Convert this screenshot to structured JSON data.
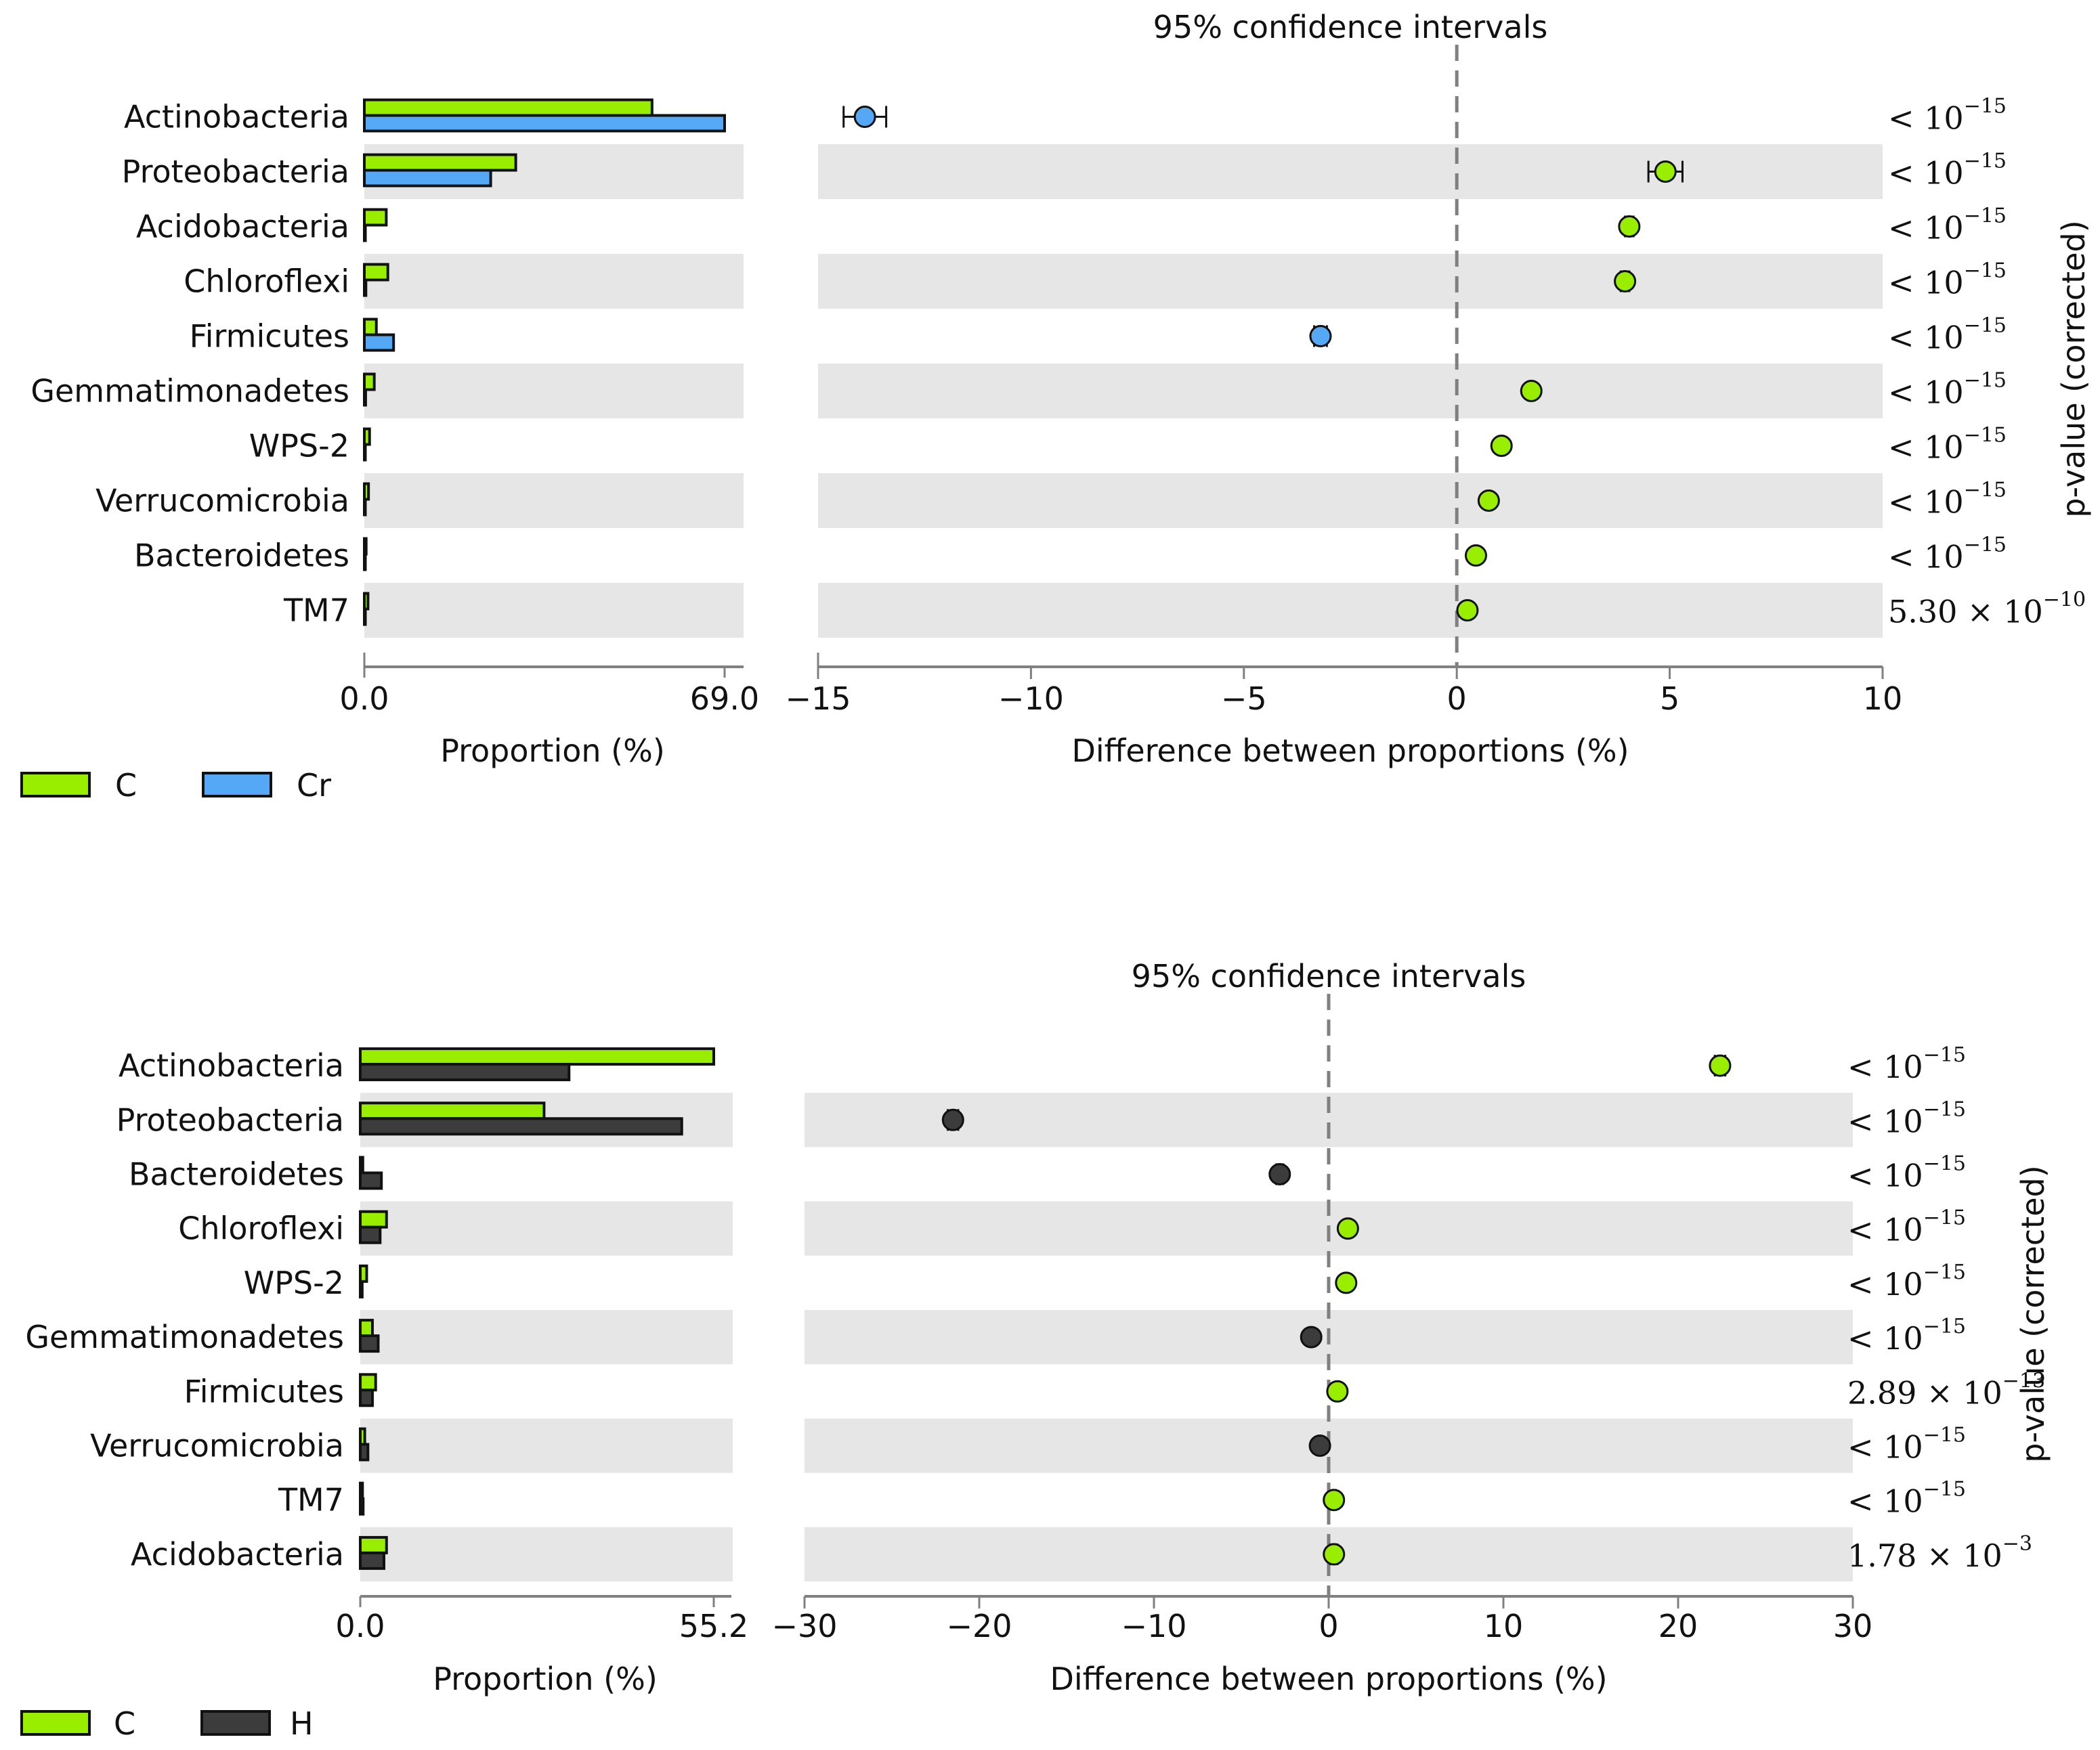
{
  "colors": {
    "C": "#99ee00",
    "Cr": "#55a8f5",
    "H": "#3c3c3c",
    "band": "#e6e6e6",
    "axis": "#808080"
  },
  "chart_data": [
    {
      "type": "bar",
      "subtype": "extended-error-bar",
      "title": "95% confidence intervals",
      "categories": [
        "Actinobacteria",
        "Proteobacteria",
        "Acidobacteria",
        "Chloroflexi",
        "Firmicutes",
        "Gemmatimonadetes",
        "WPS-2",
        "Verrucomicrobia",
        "Bacteroidetes",
        "TM7"
      ],
      "proportion": {
        "xlabel": "Proportion (%)",
        "xlim": [
          0.0,
          69.0
        ],
        "ticks": [
          "0.0",
          "69.0"
        ],
        "series": [
          {
            "name": "C",
            "color": "#99ee00",
            "values": [
              55.1,
              29.0,
              4.2,
              4.5,
              2.3,
              1.9,
              1.0,
              0.8,
              0.35,
              0.7
            ]
          },
          {
            "name": "Cr",
            "color": "#55a8f5",
            "values": [
              69.0,
              24.2,
              0.2,
              0.3,
              5.6,
              0.25,
              0.1,
              0.15,
              0.05,
              0.2
            ]
          }
        ]
      },
      "difference": {
        "xlabel": "Difference between proportions (%)",
        "xlim": [
          -15,
          10
        ],
        "ticks": [
          "−15",
          "−10",
          "−5",
          "0",
          "5",
          "10"
        ],
        "tick_values": [
          -15,
          -10,
          -5,
          0,
          5,
          10
        ],
        "values": [
          -13.9,
          4.9,
          4.05,
          3.95,
          -3.2,
          1.75,
          1.05,
          0.75,
          0.45,
          0.25
        ],
        "ci_low": [
          -14.4,
          4.5,
          3.95,
          3.85,
          -3.35,
          1.7,
          1.0,
          0.7,
          0.4,
          0.2
        ],
        "ci_high": [
          -13.4,
          5.3,
          4.15,
          4.05,
          -3.05,
          1.8,
          1.1,
          0.8,
          0.5,
          0.3
        ],
        "colors": [
          "#55a8f5",
          "#99ee00",
          "#99ee00",
          "#99ee00",
          "#55a8f5",
          "#99ee00",
          "#99ee00",
          "#99ee00",
          "#99ee00",
          "#99ee00"
        ]
      },
      "pvalues": [
        {
          "text": "< 10",
          "exp": "−15"
        },
        {
          "text": "< 10",
          "exp": "−15"
        },
        {
          "text": "< 10",
          "exp": "−15"
        },
        {
          "text": "< 10",
          "exp": "−15"
        },
        {
          "text": "< 10",
          "exp": "−15"
        },
        {
          "text": "< 10",
          "exp": "−15"
        },
        {
          "text": "< 10",
          "exp": "−15"
        },
        {
          "text": "< 10",
          "exp": "−15"
        },
        {
          "text": "< 10",
          "exp": "−15"
        },
        {
          "text": "5.30 × 10",
          "exp": "−10"
        }
      ],
      "pvalue_label": "p-value (corrected)",
      "legend": [
        {
          "name": "C",
          "color": "#99ee00"
        },
        {
          "name": "Cr",
          "color": "#55a8f5"
        }
      ]
    },
    {
      "type": "bar",
      "subtype": "extended-error-bar",
      "title": "95% confidence intervals",
      "categories": [
        "Actinobacteria",
        "Proteobacteria",
        "Bacteroidetes",
        "Chloroflexi",
        "WPS-2",
        "Gemmatimonadetes",
        "Firmicutes",
        "Verrucomicrobia",
        "TM7",
        "Acidobacteria"
      ],
      "proportion": {
        "xlabel": "Proportion (%)",
        "xlim": [
          0.0,
          55.2
        ],
        "ticks": [
          "0.0",
          "55.2"
        ],
        "series": [
          {
            "name": "C",
            "color": "#99ee00",
            "values": [
              55.2,
              28.7,
              0.4,
              4.1,
              1.0,
              1.9,
              2.4,
              0.7,
              0.35,
              4.1
            ]
          },
          {
            "name": "H",
            "color": "#3c3c3c",
            "values": [
              32.6,
              50.2,
              3.3,
              3.1,
              0.3,
              2.8,
              1.9,
              1.2,
              0.45,
              3.7
            ]
          }
        ]
      },
      "difference": {
        "xlabel": "Difference between proportions (%)",
        "xlim": [
          -30,
          30
        ],
        "ticks": [
          "−30",
          "−20",
          "−10",
          "0",
          "10",
          "20",
          "30"
        ],
        "tick_values": [
          -30,
          -20,
          -10,
          0,
          10,
          20,
          30
        ],
        "values": [
          22.4,
          -21.5,
          -2.8,
          1.1,
          1.0,
          -1.0,
          0.5,
          -0.5,
          0.3,
          0.3
        ],
        "ci_low": [
          22.1,
          -21.8,
          -3.0,
          1.0,
          0.9,
          -1.1,
          0.4,
          -0.6,
          0.2,
          0.1
        ],
        "ci_high": [
          22.7,
          -21.2,
          -2.6,
          1.2,
          1.1,
          -0.9,
          0.6,
          -0.4,
          0.4,
          0.5
        ],
        "colors": [
          "#99ee00",
          "#3c3c3c",
          "#3c3c3c",
          "#99ee00",
          "#99ee00",
          "#3c3c3c",
          "#99ee00",
          "#3c3c3c",
          "#99ee00",
          "#99ee00"
        ]
      },
      "pvalues": [
        {
          "text": "< 10",
          "exp": "−15"
        },
        {
          "text": "< 10",
          "exp": "−15"
        },
        {
          "text": "< 10",
          "exp": "−15"
        },
        {
          "text": "< 10",
          "exp": "−15"
        },
        {
          "text": "< 10",
          "exp": "−15"
        },
        {
          "text": "< 10",
          "exp": "−15"
        },
        {
          "text": "2.89 × 10",
          "exp": "−13"
        },
        {
          "text": "< 10",
          "exp": "−15"
        },
        {
          "text": "< 10",
          "exp": "−15"
        },
        {
          "text": "1.78 × 10",
          "exp": "−3"
        }
      ],
      "pvalue_label": "p-value (corrected)",
      "legend": [
        {
          "name": "C",
          "color": "#99ee00"
        },
        {
          "name": "H",
          "color": "#3c3c3c"
        }
      ]
    }
  ]
}
